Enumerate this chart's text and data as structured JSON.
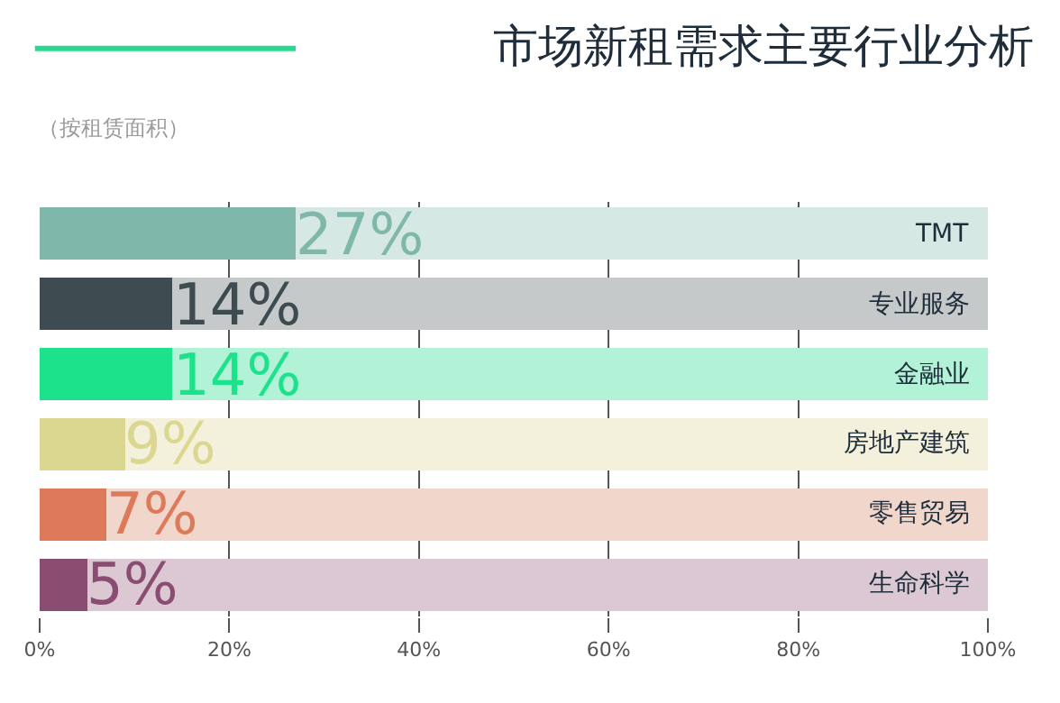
{
  "chart_data": {
    "type": "bar",
    "orientation": "horizontal",
    "stacked": true,
    "title": "市场新租需求主要行业分析",
    "subtitle": "（按租赁面积）",
    "categories": [
      "TMT",
      "专业服务",
      "金融业",
      "房地产建筑",
      "零售贸易",
      "生命科学"
    ],
    "series": [
      {
        "values": [
          27,
          14,
          14,
          9,
          7,
          5
        ],
        "colors": [
          "#7fb8aa",
          "#3e4b50",
          "#1de28c",
          "#dcd790",
          "#dd7a5a",
          "#8a4d72"
        ],
        "value_labels": [
          "27%",
          "14%",
          "14%",
          "9%",
          "7%",
          "5%"
        ]
      },
      {
        "values": [
          73,
          86,
          86,
          91,
          93,
          95
        ],
        "colors": [
          "#d6e8e3",
          "#c6c9c9",
          "#b2f3d8",
          "#f3f1dc",
          "#f1d6cc",
          "#dbc8d3"
        ]
      }
    ],
    "xlim": [
      0,
      100
    ],
    "xticks": [
      {
        "value": 0,
        "label": "0%"
      },
      {
        "value": 20,
        "label": "20%"
      },
      {
        "value": 40,
        "label": "40%"
      },
      {
        "value": 60,
        "label": "60%"
      },
      {
        "value": 80,
        "label": "80%"
      },
      {
        "value": 100,
        "label": "100%"
      }
    ],
    "grid": "x"
  }
}
